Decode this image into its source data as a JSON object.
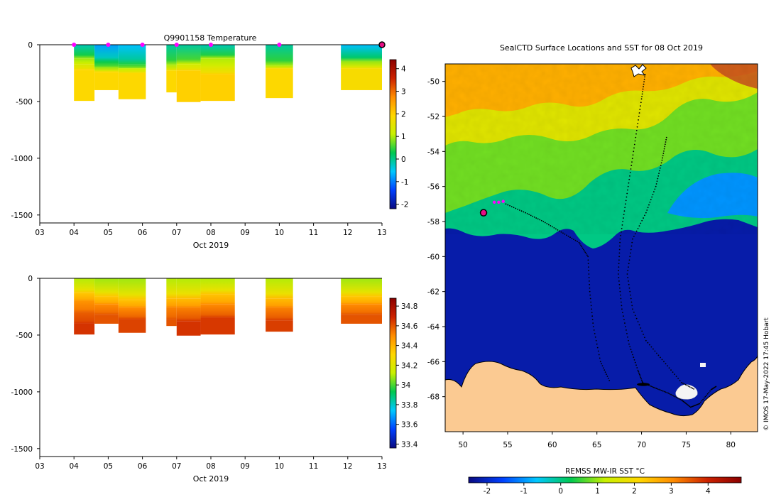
{
  "chart_data": [
    {
      "id": "temperature-section",
      "type": "heatmap",
      "title": "Q9901158  Temperature",
      "xlabel": "Oct 2019",
      "ylabel": "",
      "xlim": [
        3,
        13
      ],
      "ylim": [
        -1570,
        0
      ],
      "x_ticks": [
        "03",
        "04",
        "05",
        "06",
        "07",
        "08",
        "09",
        "10",
        "11",
        "12",
        "13"
      ],
      "y_ticks": [
        0,
        -500,
        -1000,
        -1500
      ],
      "colorbar": {
        "min": -2.2,
        "max": 4.4,
        "ticks": [
          -2,
          -1,
          0,
          1,
          2,
          3,
          4
        ],
        "colors": [
          "#0a0a80",
          "#0040ff",
          "#00c8ff",
          "#00c850",
          "#c8f000",
          "#ffd700",
          "#ff8c00",
          "#cc2200",
          "#8b0000"
        ]
      },
      "profile_markers": [
        4.0,
        5.0,
        6.0,
        7.0,
        8.0,
        10.0
      ],
      "last_position_marker": 13.0,
      "columns": [
        {
          "x0": 4.0,
          "x1": 4.6,
          "max_depth": -495,
          "layers": [
            {
              "d0": 0,
              "d1": -120,
              "v": -0.2
            },
            {
              "d0": -120,
              "d1": -170,
              "v": 0.9
            },
            {
              "d0": -170,
              "d1": -220,
              "v": 1.3
            },
            {
              "d0": -220,
              "d1": -495,
              "v": 1.9
            }
          ]
        },
        {
          "x0": 4.6,
          "x1": 5.3,
          "max_depth": -400,
          "layers": [
            {
              "d0": 0,
              "d1": -150,
              "v": -0.8
            },
            {
              "d0": -150,
              "d1": -200,
              "v": 0.3
            },
            {
              "d0": -200,
              "d1": -240,
              "v": 0.9
            },
            {
              "d0": -240,
              "d1": -400,
              "v": 1.9
            }
          ]
        },
        {
          "x0": 5.3,
          "x1": 6.1,
          "max_depth": -480,
          "layers": [
            {
              "d0": 0,
              "d1": -170,
              "v": -0.6
            },
            {
              "d0": -170,
              "d1": -210,
              "v": 0.4
            },
            {
              "d0": -210,
              "d1": -250,
              "v": 1.1
            },
            {
              "d0": -250,
              "d1": -480,
              "v": 1.9
            }
          ]
        },
        {
          "x0": 6.7,
          "x1": 7.0,
          "max_depth": -420,
          "layers": [
            {
              "d0": 0,
              "d1": -180,
              "v": -0.1
            },
            {
              "d0": -180,
              "d1": -230,
              "v": 1.0
            },
            {
              "d0": -230,
              "d1": -420,
              "v": 1.9
            }
          ]
        },
        {
          "x0": 7.0,
          "x1": 7.7,
          "max_depth": -505,
          "layers": [
            {
              "d0": 0,
              "d1": -170,
              "v": -0.1
            },
            {
              "d0": -170,
              "d1": -230,
              "v": 1.2
            },
            {
              "d0": -230,
              "d1": -505,
              "v": 2.0
            }
          ]
        },
        {
          "x0": 7.7,
          "x1": 8.7,
          "max_depth": -495,
          "layers": [
            {
              "d0": 0,
              "d1": -120,
              "v": -0.2
            },
            {
              "d0": -120,
              "d1": -200,
              "v": 1.0
            },
            {
              "d0": -200,
              "d1": -260,
              "v": 1.4
            },
            {
              "d0": -260,
              "d1": -495,
              "v": 2.0
            }
          ]
        },
        {
          "x0": 9.6,
          "x1": 10.4,
          "max_depth": -470,
          "layers": [
            {
              "d0": 0,
              "d1": -185,
              "v": -0.1
            },
            {
              "d0": -185,
              "d1": -210,
              "v": 1.0
            },
            {
              "d0": -210,
              "d1": -470,
              "v": 1.9
            }
          ]
        },
        {
          "x0": 11.8,
          "x1": 13.0,
          "max_depth": -400,
          "layers": [
            {
              "d0": 0,
              "d1": -150,
              "v": -0.6
            },
            {
              "d0": -150,
              "d1": -210,
              "v": 0.9
            },
            {
              "d0": -210,
              "d1": -400,
              "v": 1.8
            }
          ]
        }
      ]
    },
    {
      "id": "salinity-section",
      "type": "heatmap",
      "title": "",
      "xlabel": "Oct 2019",
      "ylabel": "",
      "xlim": [
        3,
        13
      ],
      "ylim": [
        -1570,
        0
      ],
      "x_ticks": [
        "03",
        "04",
        "05",
        "06",
        "07",
        "08",
        "09",
        "10",
        "11",
        "12",
        "13"
      ],
      "y_ticks": [
        0,
        -500,
        -1000,
        -1500
      ],
      "colorbar": {
        "min": 33.36,
        "max": 34.88,
        "ticks": [
          33.4,
          33.6,
          33.8,
          34,
          34.2,
          34.4,
          34.6,
          34.8
        ],
        "colors": [
          "#0a0a80",
          "#0040ff",
          "#00c8ff",
          "#00c850",
          "#c8f000",
          "#ffd700",
          "#ff8c00",
          "#cc2200",
          "#8b0000"
        ]
      },
      "columns": [
        {
          "x0": 4.0,
          "x1": 4.6,
          "max_depth": -495,
          "layers": [
            {
              "d0": 0,
              "d1": -130,
              "v": 34.1
            },
            {
              "d0": -130,
              "d1": -200,
              "v": 34.35
            },
            {
              "d0": -200,
              "d1": -300,
              "v": 34.48
            },
            {
              "d0": -300,
              "d1": -400,
              "v": 34.58
            },
            {
              "d0": -400,
              "d1": -495,
              "v": 34.66
            }
          ]
        },
        {
          "x0": 4.6,
          "x1": 5.3,
          "max_depth": -400,
          "layers": [
            {
              "d0": 0,
              "d1": -160,
              "v": 34.08
            },
            {
              "d0": -160,
              "d1": -230,
              "v": 34.35
            },
            {
              "d0": -230,
              "d1": -320,
              "v": 34.5
            },
            {
              "d0": -320,
              "d1": -400,
              "v": 34.6
            }
          ]
        },
        {
          "x0": 5.3,
          "x1": 6.1,
          "max_depth": -480,
          "layers": [
            {
              "d0": 0,
              "d1": -190,
              "v": 34.08
            },
            {
              "d0": -190,
              "d1": -260,
              "v": 34.36
            },
            {
              "d0": -260,
              "d1": -360,
              "v": 34.5
            },
            {
              "d0": -360,
              "d1": -480,
              "v": 34.63
            }
          ]
        },
        {
          "x0": 6.7,
          "x1": 7.0,
          "max_depth": -420,
          "layers": [
            {
              "d0": 0,
              "d1": -180,
              "v": 34.1
            },
            {
              "d0": -180,
              "d1": -260,
              "v": 34.38
            },
            {
              "d0": -260,
              "d1": -360,
              "v": 34.52
            },
            {
              "d0": -360,
              "d1": -420,
              "v": 34.6
            }
          ]
        },
        {
          "x0": 7.0,
          "x1": 7.7,
          "max_depth": -505,
          "layers": [
            {
              "d0": 0,
              "d1": -180,
              "v": 34.1
            },
            {
              "d0": -180,
              "d1": -260,
              "v": 34.38
            },
            {
              "d0": -260,
              "d1": -380,
              "v": 34.52
            },
            {
              "d0": -380,
              "d1": -505,
              "v": 34.66
            }
          ]
        },
        {
          "x0": 7.7,
          "x1": 8.7,
          "max_depth": -495,
          "layers": [
            {
              "d0": 0,
              "d1": -140,
              "v": 34.1
            },
            {
              "d0": -140,
              "d1": -230,
              "v": 34.36
            },
            {
              "d0": -230,
              "d1": -350,
              "v": 34.5
            },
            {
              "d0": -350,
              "d1": -495,
              "v": 34.65
            }
          ]
        },
        {
          "x0": 9.6,
          "x1": 10.4,
          "max_depth": -470,
          "layers": [
            {
              "d0": 0,
              "d1": -180,
              "v": 34.1
            },
            {
              "d0": -180,
              "d1": -260,
              "v": 34.38
            },
            {
              "d0": -260,
              "d1": -370,
              "v": 34.52
            },
            {
              "d0": -370,
              "d1": -470,
              "v": 34.64
            }
          ]
        },
        {
          "x0": 11.8,
          "x1": 13.0,
          "max_depth": -400,
          "layers": [
            {
              "d0": 0,
              "d1": -160,
              "v": 34.08
            },
            {
              "d0": -160,
              "d1": -230,
              "v": 34.35
            },
            {
              "d0": -230,
              "d1": -320,
              "v": 34.5
            },
            {
              "d0": -320,
              "d1": -400,
              "v": 34.6
            }
          ]
        }
      ]
    },
    {
      "id": "sst-map",
      "type": "heatmap",
      "title": "SealCTD Surface Locations and SST for 08 Oct 2019",
      "xlabel": "",
      "ylabel": "",
      "xlim": [
        48,
        83
      ],
      "ylim": [
        -70,
        -49
      ],
      "x_ticks": [
        50,
        55,
        60,
        65,
        70,
        75,
        80
      ],
      "y_ticks": [
        -50,
        -52,
        -54,
        -56,
        -58,
        -60,
        -62,
        -64,
        -66,
        -68
      ],
      "colorbar": {
        "label": "REMSS MW-IR SST °C",
        "min": -2.5,
        "max": 4.9,
        "ticks": [
          -2,
          -1,
          0,
          1,
          2,
          3,
          4
        ],
        "colors": [
          "#0a0a80",
          "#0040ff",
          "#00c8ff",
          "#00c850",
          "#c8f000",
          "#ffd700",
          "#ff8c00",
          "#cc2200",
          "#8b0000"
        ]
      },
      "sst_regions": [
        {
          "region": "north",
          "v": 2.6
        },
        {
          "region": "mid-north",
          "v": 1.6
        },
        {
          "region": "middle",
          "v": 0.8
        },
        {
          "region": "southern-band",
          "v": 0.0
        },
        {
          "region": "east-cool-pocket",
          "v": -1.0
        },
        {
          "region": "near-ice",
          "v": -2.2
        }
      ],
      "latest_position": {
        "lon": 52.3,
        "lat": -57.5
      },
      "recent_positions": [
        {
          "lon": 53.5,
          "lat": -56.9
        },
        {
          "lon": 54.0,
          "lat": -56.9
        },
        {
          "lon": 54.5,
          "lat": -56.85
        }
      ],
      "tracks": [
        {
          "name": "track-1",
          "points": [
            [
              70.4,
              -49.6
            ],
            [
              70.0,
              -51.0
            ],
            [
              69.4,
              -53.0
            ],
            [
              68.8,
              -55.0
            ],
            [
              68.2,
              -57.0
            ],
            [
              67.6,
              -59.0
            ],
            [
              67.4,
              -61.0
            ],
            [
              67.8,
              -63.0
            ],
            [
              68.6,
              -65.0
            ],
            [
              69.6,
              -66.5
            ],
            [
              70.2,
              -67.3
            ]
          ]
        },
        {
          "name": "track-2",
          "points": [
            [
              72.8,
              -53.2
            ],
            [
              72.3,
              -54.5
            ],
            [
              71.6,
              -56.0
            ],
            [
              70.5,
              -57.5
            ],
            [
              69.0,
              -59.0
            ],
            [
              68.4,
              -61.0
            ],
            [
              69.0,
              -63.0
            ],
            [
              70.5,
              -64.8
            ],
            [
              72.5,
              -66.0
            ],
            [
              74.5,
              -67.2
            ],
            [
              76.0,
              -67.6
            ]
          ]
        },
        {
          "name": "track-3",
          "points": [
            [
              54.8,
              -57.0
            ],
            [
              57.0,
              -57.5
            ],
            [
              59.0,
              -58.0
            ],
            [
              61.0,
              -58.6
            ],
            [
              63.0,
              -59.2
            ],
            [
              64.0,
              -60.0
            ],
            [
              64.2,
              -62.0
            ],
            [
              64.6,
              -64.0
            ],
            [
              65.4,
              -66.0
            ],
            [
              66.5,
              -67.2
            ]
          ]
        },
        {
          "name": "track-4",
          "points": [
            [
              70.1,
              -67.2
            ],
            [
              71.5,
              -67.5
            ],
            [
              73.0,
              -67.8
            ],
            [
              74.5,
              -68.2
            ],
            [
              75.5,
              -68.6
            ],
            [
              76.5,
              -68.4
            ],
            [
              77.8,
              -67.6
            ],
            [
              78.4,
              -67.4
            ]
          ]
        }
      ],
      "annotation": "© IMOS 17-May-2022 17:45 Hobart"
    }
  ]
}
